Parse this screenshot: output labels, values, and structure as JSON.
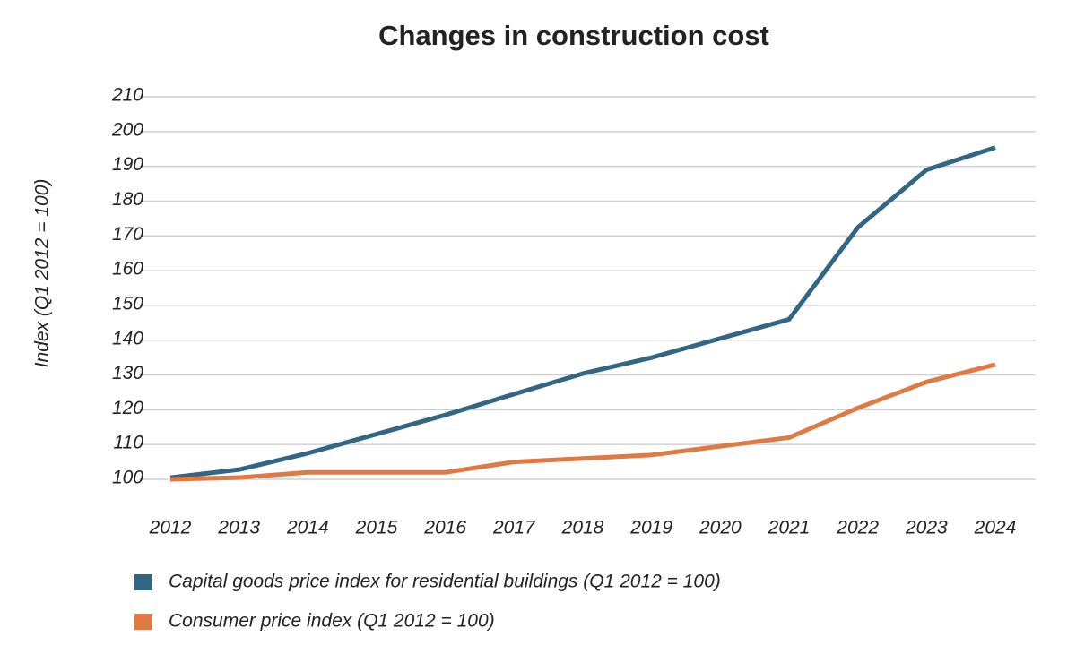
{
  "chart_data": {
    "type": "line",
    "title": "Changes in construction cost",
    "y_label": "Index (Q1 2012 = 100)",
    "categories": [
      "2012",
      "2013",
      "2014",
      "2015",
      "2016",
      "2017",
      "2018",
      "2019",
      "2020",
      "2021",
      "2022",
      "2023",
      "2024"
    ],
    "series": [
      {
        "name": "Capital goods price index for residential buildings (Q1 2012 = 100)",
        "color": "#336584",
        "values": [
          100.5,
          102.8,
          107.5,
          113,
          118.5,
          124.5,
          130.4,
          135,
          140.5,
          146,
          172.4,
          189,
          195.4
        ]
      },
      {
        "name": "Consumer price index (Q1 2012 = 100)",
        "color": "#e07a45",
        "values": [
          100,
          100.5,
          102,
          102,
          102,
          105,
          106,
          107,
          109.5,
          112,
          120.5,
          128,
          133
        ]
      }
    ],
    "ylim": [
      100,
      210
    ],
    "yticks": [
      100,
      110,
      120,
      130,
      140,
      150,
      160,
      170,
      180,
      190,
      200,
      210
    ],
    "grid": true
  }
}
